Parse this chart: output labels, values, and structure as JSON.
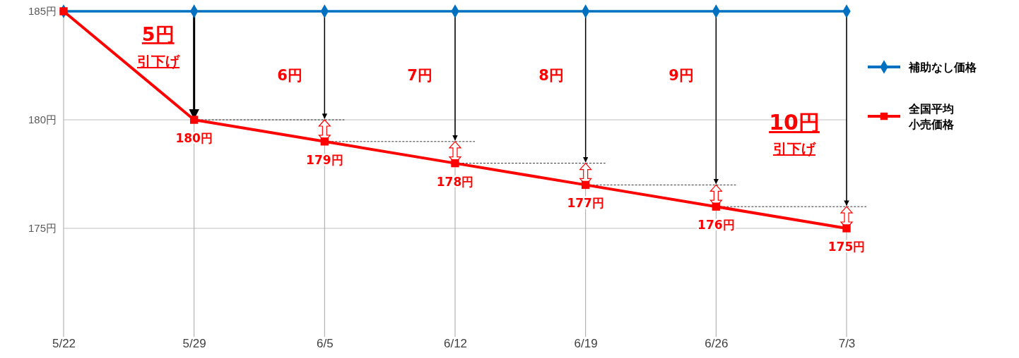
{
  "chart_data": {
    "type": "line",
    "categories": [
      "5/22",
      "5/29",
      "6/5",
      "6/12",
      "6/19",
      "6/26",
      "7/3"
    ],
    "series": [
      {
        "name": "補助なし価格",
        "color": "#0070c0",
        "marker": "diamond",
        "values": [
          185,
          185,
          185,
          185,
          185,
          185,
          185
        ]
      },
      {
        "name": "全国平均小売価格",
        "color": "#ff0000",
        "marker": "square",
        "values": [
          185,
          180,
          179,
          178,
          177,
          176,
          175
        ],
        "value_labels": [
          null,
          "180円",
          "179円",
          "178円",
          "177円",
          "176円",
          "175円"
        ]
      }
    ],
    "ylim": [
      170,
      185
    ],
    "yticks": [
      {
        "value": 175,
        "label": "175円"
      },
      {
        "value": 180,
        "label": "180円"
      },
      {
        "value": 185,
        "label": "185円"
      }
    ],
    "grid": true,
    "legend": "right",
    "annotations": [
      {
        "text": "5円",
        "x": "5/29",
        "y": 180
      },
      "引下げ",
      "6円",
      "7円",
      "8円",
      "9円",
      "10円",
      "引下げ"
    ]
  }
}
